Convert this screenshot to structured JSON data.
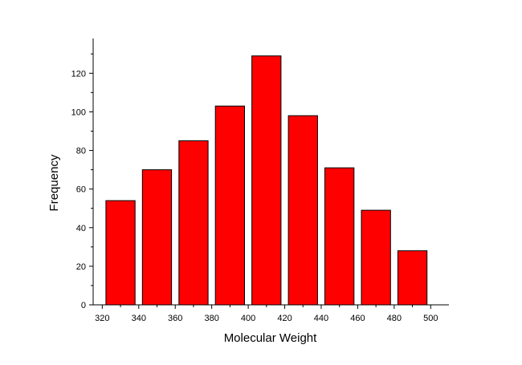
{
  "chart_data": {
    "type": "bar",
    "title": "",
    "xlabel": "Molecular Weight",
    "ylabel": "Frequency",
    "bin_width": 20,
    "bins": [
      {
        "x_start": 320,
        "x_end": 340,
        "value": 54
      },
      {
        "x_start": 340,
        "x_end": 360,
        "value": 70
      },
      {
        "x_start": 360,
        "x_end": 380,
        "value": 85
      },
      {
        "x_start": 380,
        "x_end": 400,
        "value": 103
      },
      {
        "x_start": 400,
        "x_end": 420,
        "value": 129
      },
      {
        "x_start": 420,
        "x_end": 440,
        "value": 98
      },
      {
        "x_start": 440,
        "x_end": 460,
        "value": 71
      },
      {
        "x_start": 460,
        "x_end": 480,
        "value": 49
      },
      {
        "x_start": 480,
        "x_end": 500,
        "value": 28
      }
    ],
    "xlim": [
      315,
      510
    ],
    "ylim": [
      0,
      138
    ],
    "x_ticks": [
      "320",
      "340",
      "360",
      "380",
      "400",
      "420",
      "440",
      "460",
      "480",
      "500"
    ],
    "y_ticks": [
      "0",
      "20",
      "40",
      "60",
      "80",
      "100",
      "120"
    ],
    "bar_color": "#ff0000",
    "bar_edge_color": "#000000",
    "grid": false,
    "legend": "none"
  }
}
